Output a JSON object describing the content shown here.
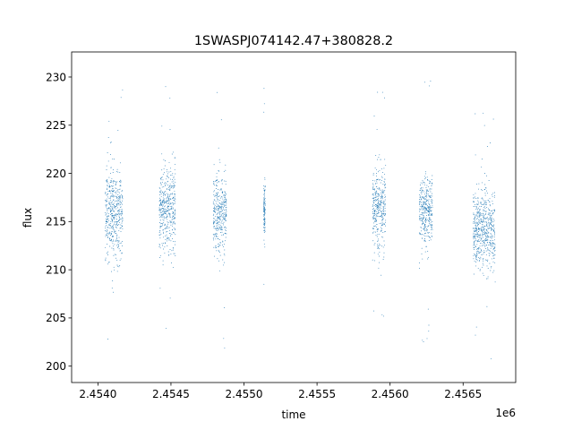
{
  "chart_data": {
    "type": "scatter",
    "title": "1SWASPJ074142.47+380828.2",
    "xlabel": "time",
    "ylabel": "flux",
    "x_offset_label": "1e6",
    "xlim": [
      2.45382,
      2.45686
    ],
    "ylim": [
      198.3,
      232.6
    ],
    "x_ticks": [
      2.454,
      2.4545,
      2.455,
      2.4555,
      2.456,
      2.4565
    ],
    "x_tick_labels": [
      "2.4540",
      "2.4545",
      "2.4550",
      "2.4555",
      "2.4560",
      "2.4565"
    ],
    "y_ticks": [
      200,
      205,
      210,
      215,
      220,
      225,
      230
    ],
    "y_tick_labels": [
      "200",
      "205",
      "210",
      "215",
      "220",
      "225",
      "230"
    ],
    "grid": false,
    "marker_color": "#1f77b4",
    "series": [
      {
        "segments": [
          {
            "x_start": 2.45405,
            "x_end": 2.45417,
            "center": 215.8,
            "spread": 5.0
          },
          {
            "x_start": 2.45442,
            "x_end": 2.45453,
            "center": 216.2,
            "spread": 5.0
          },
          {
            "x_start": 2.45479,
            "x_end": 2.45488,
            "center": 215.8,
            "spread": 4.5
          },
          {
            "x_start": 2.455135,
            "x_end": 2.455145,
            "center": 216.0,
            "spread": 3.0
          },
          {
            "x_start": 2.45588,
            "x_end": 2.45597,
            "center": 216.3,
            "spread": 4.5
          },
          {
            "x_start": 2.4562,
            "x_end": 2.45629,
            "center": 216.2,
            "spread": 4.0
          },
          {
            "x_start": 2.45657,
            "x_end": 2.45672,
            "center": 214.0,
            "spread": 4.5
          }
        ]
      }
    ]
  }
}
